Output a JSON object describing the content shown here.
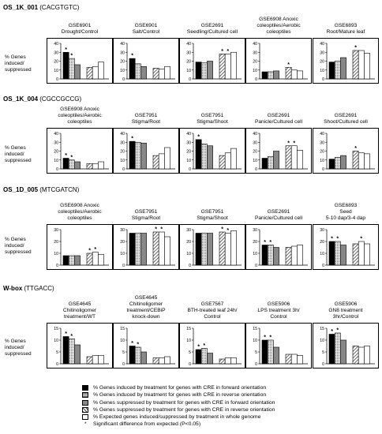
{
  "sections": [
    {
      "name": "OS_1K_001",
      "motif": "(CACGTGTC)"
    },
    {
      "name": "OS_1K_004",
      "motif": "(CGCCGCCG)"
    },
    {
      "name": "OS_1D_005",
      "motif": "(MTCGATCN)"
    },
    {
      "name": "W-box",
      "motif": "(TTGACC)"
    }
  ],
  "ylabel": "% Genes induced/ suppressed",
  "legend": [
    {
      "fill": "solid-black",
      "text": "% Genes induced by treatment for genes with CRE in forward orientation"
    },
    {
      "fill": "dotted",
      "text": "% Genes induced by treatment for genes with CRE in reverse orientation"
    },
    {
      "fill": "solid-gray",
      "text": "% Genes suppressed by treatment for genes with CRE in forward orientation"
    },
    {
      "fill": "hatched",
      "text": "% Genes suppressed by treatment for genes with CRE in reverse orientation"
    },
    {
      "fill": "white",
      "text": "% Expected genes induced/suppressed by treatment in whole genome"
    },
    {
      "fill": "star",
      "text": "Significant difference from expected (P<0.05)"
    }
  ],
  "colors": {
    "gray": "#7a7a7a",
    "dotted_bg": "#e0e0e0",
    "hatch": "#555555"
  },
  "chart_data": [
    {
      "type": "bar",
      "section": 0,
      "col": 0,
      "caption": [
        "GSE6901",
        "Drought/Control"
      ],
      "ylim": [
        0,
        40
      ],
      "yticks": [
        0,
        10,
        20,
        30,
        40
      ],
      "values": [
        30,
        23,
        16,
        13,
        14,
        19
      ],
      "stars": [
        0,
        1
      ]
    },
    {
      "type": "bar",
      "section": 0,
      "col": 1,
      "caption": [
        "GSE6901",
        "Salt/Control"
      ],
      "ylim": [
        0,
        40
      ],
      "yticks": [
        0,
        10,
        20,
        30,
        40
      ],
      "values": [
        23,
        17,
        14,
        12,
        11,
        14
      ],
      "stars": [
        0
      ]
    },
    {
      "type": "bar",
      "section": 0,
      "col": 2,
      "caption": [
        "GSE2691",
        "Seedling/Cultured cell"
      ],
      "ylim": [
        0,
        40
      ],
      "yticks": [
        0,
        10,
        20,
        30,
        40
      ],
      "values": [
        19,
        18,
        20,
        28,
        28,
        30
      ],
      "stars": [
        3,
        4
      ]
    },
    {
      "type": "bar",
      "section": 0,
      "col": 3,
      "caption": [
        "GSE6908 Anoxic",
        "coleoptiles/Aerobic",
        "coleoptiles"
      ],
      "ylim": [
        0,
        40
      ],
      "yticks": [
        0,
        10,
        20,
        30,
        40
      ],
      "values": [
        8,
        8,
        9,
        13,
        10,
        9
      ],
      "stars": [
        3
      ]
    },
    {
      "type": "bar",
      "section": 0,
      "col": 4,
      "caption": [
        "GSE6893",
        "Root/Mature leaf"
      ],
      "ylim": [
        0,
        40
      ],
      "yticks": [
        0,
        10,
        20,
        30,
        40
      ],
      "values": [
        19,
        20,
        24,
        32,
        32,
        29
      ],
      "stars": [
        3
      ]
    },
    {
      "type": "bar",
      "section": 1,
      "col": 0,
      "caption": [
        "GSE6908 Anoxic",
        "coleoptiles/Aerobic",
        "coleoptiles"
      ],
      "ylim": [
        0,
        40
      ],
      "yticks": [
        0,
        10,
        20,
        30,
        40
      ],
      "values": [
        12,
        10,
        8,
        6,
        6,
        8
      ],
      "stars": [
        0,
        1
      ]
    },
    {
      "type": "bar",
      "section": 1,
      "col": 1,
      "caption": [
        "GSE7951",
        "Stigma/Root"
      ],
      "ylim": [
        0,
        40
      ],
      "yticks": [
        0,
        10,
        20,
        30,
        40
      ],
      "values": [
        31,
        30,
        29,
        15,
        17,
        24
      ],
      "stars": [
        0
      ]
    },
    {
      "type": "bar",
      "section": 1,
      "col": 2,
      "caption": [
        "GSE7951",
        "Stigma/Shoot"
      ],
      "ylim": [
        0,
        40
      ],
      "yticks": [
        0,
        10,
        20,
        30,
        40
      ],
      "values": [
        33,
        28,
        26,
        15,
        18,
        23
      ],
      "stars": [
        0
      ]
    },
    {
      "type": "bar",
      "section": 1,
      "col": 3,
      "caption": [
        "GSE2691",
        "Panicle/Cultured cell"
      ],
      "ylim": [
        0,
        40
      ],
      "yticks": [
        0,
        10,
        20,
        30,
        40
      ],
      "values": [
        12,
        14,
        20,
        26,
        26,
        21
      ],
      "stars": [
        3,
        4
      ]
    },
    {
      "type": "bar",
      "section": 1,
      "col": 4,
      "caption": [
        "GSE2691",
        "Shoot/Cultured cell"
      ],
      "ylim": [
        0,
        40
      ],
      "yticks": [
        0,
        10,
        20,
        30,
        40
      ],
      "values": [
        11,
        13,
        15,
        20,
        18,
        17
      ],
      "stars": [
        3
      ]
    },
    {
      "type": "bar",
      "section": 2,
      "col": 0,
      "caption": [
        "GSE6908 Anoxic",
        "coleoptiles/Aerobic",
        "coleoptiles"
      ],
      "ylim": [
        0,
        30
      ],
      "yticks": [
        0,
        10,
        20,
        30
      ],
      "values": [
        8,
        8,
        8,
        10,
        11,
        9
      ],
      "stars": [
        3,
        4
      ]
    },
    {
      "type": "bar",
      "section": 2,
      "col": 1,
      "caption": [
        "GSE7951",
        "Stigma/Root"
      ],
      "ylim": [
        0,
        30
      ],
      "yticks": [
        0,
        10,
        20,
        30
      ],
      "values": [
        27,
        27,
        27,
        28,
        28,
        24
      ],
      "stars": [
        3,
        4
      ]
    },
    {
      "type": "bar",
      "section": 2,
      "col": 2,
      "caption": [
        "GSE7951",
        "Stigma/Shoot"
      ],
      "ylim": [
        0,
        30
      ],
      "yticks": [
        0,
        10,
        20,
        30
      ],
      "values": [
        27,
        27,
        27,
        28,
        27,
        29
      ],
      "stars": [
        3,
        4
      ]
    },
    {
      "type": "bar",
      "section": 2,
      "col": 3,
      "caption": [
        "GSE2691",
        "Panicle/Cultured cell"
      ],
      "ylim": [
        0,
        30
      ],
      "yticks": [
        0,
        10,
        20,
        30
      ],
      "values": [
        17,
        17,
        15,
        15,
        16,
        17
      ],
      "stars": [
        0,
        1
      ]
    },
    {
      "type": "bar",
      "section": 2,
      "col": 4,
      "caption": [
        "GSE6893",
        "Seed",
        "5-10 dap/3-4 dap"
      ],
      "ylim": [
        0,
        30
      ],
      "yticks": [
        0,
        10,
        20,
        30
      ],
      "values": [
        20,
        20,
        17,
        18,
        20,
        18
      ],
      "stars": [
        0,
        1,
        4
      ]
    },
    {
      "type": "bar",
      "section": 3,
      "col": 0,
      "caption": [
        "GSE4645",
        "Chitinoligomer",
        "treatment/WT"
      ],
      "ylim": [
        0,
        15
      ],
      "yticks": [
        0,
        5,
        10,
        15
      ],
      "values": [
        11.5,
        10.5,
        8,
        3,
        3.5,
        3.5
      ],
      "stars": [
        0,
        1
      ]
    },
    {
      "type": "bar",
      "section": 3,
      "col": 1,
      "caption": [
        "GSE4645",
        "Chitinoligomer",
        "treatment/CEBiP",
        "knock-down"
      ],
      "ylim": [
        0,
        15
      ],
      "yticks": [
        0,
        5,
        10,
        15
      ],
      "values": [
        7.5,
        7,
        5,
        2.5,
        2.5,
        3
      ],
      "stars": [
        0,
        1
      ]
    },
    {
      "type": "bar",
      "section": 3,
      "col": 2,
      "caption": [
        "GSE7567",
        "BTH-treated leaf 24h/",
        "Control"
      ],
      "ylim": [
        0,
        15
      ],
      "yticks": [
        0,
        5,
        10,
        15
      ],
      "values": [
        6,
        6.5,
        4.5,
        2,
        2.5,
        2.5
      ],
      "stars": [
        0,
        1
      ]
    },
    {
      "type": "bar",
      "section": 3,
      "col": 3,
      "caption": [
        "GSE5906",
        "LPS treatment 3h/",
        "Control"
      ],
      "ylim": [
        0,
        15
      ],
      "yticks": [
        0,
        5,
        10,
        15
      ],
      "values": [
        10,
        10,
        7,
        4,
        4,
        3.5
      ],
      "stars": [
        0,
        1
      ]
    },
    {
      "type": "bar",
      "section": 3,
      "col": 4,
      "caption": [
        "GSE5906",
        "GN8 treatment",
        "3hr/Control"
      ],
      "ylim": [
        0,
        15
      ],
      "yticks": [
        0,
        5,
        10,
        15
      ],
      "values": [
        12.5,
        13,
        10,
        7.5,
        7,
        7.5
      ],
      "stars": [
        0,
        1
      ]
    }
  ]
}
